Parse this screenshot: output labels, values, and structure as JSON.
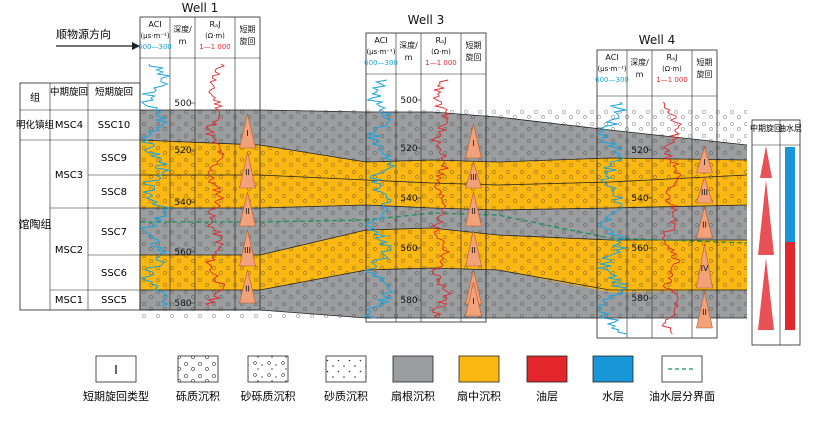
{
  "flow_label": "顺物源方向",
  "wells": [
    {
      "name": "Well 1",
      "aci": "ACI",
      "aci_unit": "(μs·m⁻¹)",
      "aci_range": "600—300",
      "depth": "深度/",
      "depth_unit": "m",
      "ra": "RₐJ",
      "ra_unit": "(Ω·m)",
      "ra_range": "1—1 000",
      "cycle": "短期",
      "cycle2": "旋回",
      "ticks": [
        "500",
        "520",
        "540",
        "560",
        "580"
      ],
      "cycles": [
        "I",
        "II",
        "II",
        "III",
        "II"
      ]
    },
    {
      "name": "Well 3",
      "aci": "ACI",
      "aci_unit": "(μs·m⁻¹)",
      "aci_range": "600—300",
      "depth": "深度/",
      "depth_unit": "m",
      "ra": "RₐJ",
      "ra_unit": "(Ω·m)",
      "ra_range": "1—1 000",
      "cycle": "短期",
      "cycle2": "旋回",
      "ticks": [
        "500",
        "520",
        "540",
        "560",
        "580"
      ],
      "cycles": [
        "I",
        "III",
        "II",
        "II",
        "II",
        "I"
      ]
    },
    {
      "name": "Well 4",
      "aci": "ACI",
      "aci_unit": "(μs·m⁻¹)",
      "aci_range": "600—300",
      "depth": "深度/",
      "depth_unit": "m",
      "ra": "RₐJ",
      "ra_unit": "(Ω·m)",
      "ra_range": "1—1 000",
      "cycle": "短期",
      "cycle2": "旋回",
      "ticks": [
        "520",
        "540",
        "560",
        "580"
      ],
      "cycles": [
        "I",
        "III",
        "II",
        "IV",
        "II"
      ]
    }
  ],
  "strat": {
    "headers": [
      "组",
      "中期旋回",
      "短期旋回"
    ],
    "formations": [
      "明化镇组",
      "馆陶组"
    ],
    "msc": [
      "MSC4",
      "MSC3",
      "MSC2",
      "MSC1"
    ],
    "ssc": [
      "SSC10",
      "SSC9",
      "SSC8",
      "SSC7",
      "SSC6",
      "SSC5"
    ]
  },
  "right_col": {
    "mid": "中期旋回",
    "oilwater": "油水层"
  },
  "legend": [
    {
      "name": "cycle-type",
      "label": "短期旋回类型",
      "symbol": "I"
    },
    {
      "name": "gravel",
      "label": "砾质沉积"
    },
    {
      "name": "pebbly-sand",
      "label": "砂砾质沉积"
    },
    {
      "name": "sand",
      "label": "砂质沉积"
    },
    {
      "name": "fan-root",
      "label": "扇根沉积"
    },
    {
      "name": "fan-middle",
      "label": "扇中沉积"
    },
    {
      "name": "oil",
      "label": "油层"
    },
    {
      "name": "water",
      "label": "水层"
    },
    {
      "name": "boundary",
      "label": "油水层分界面"
    }
  ],
  "colors": {
    "fan_root": "#9c9d9f",
    "fan_middle": "#fbb813",
    "oil": "#e2262b",
    "water": "#1996d8",
    "aci": "#1aa3dd",
    "ra": "#e0262b",
    "boundary": "#1f8f5c"
  }
}
